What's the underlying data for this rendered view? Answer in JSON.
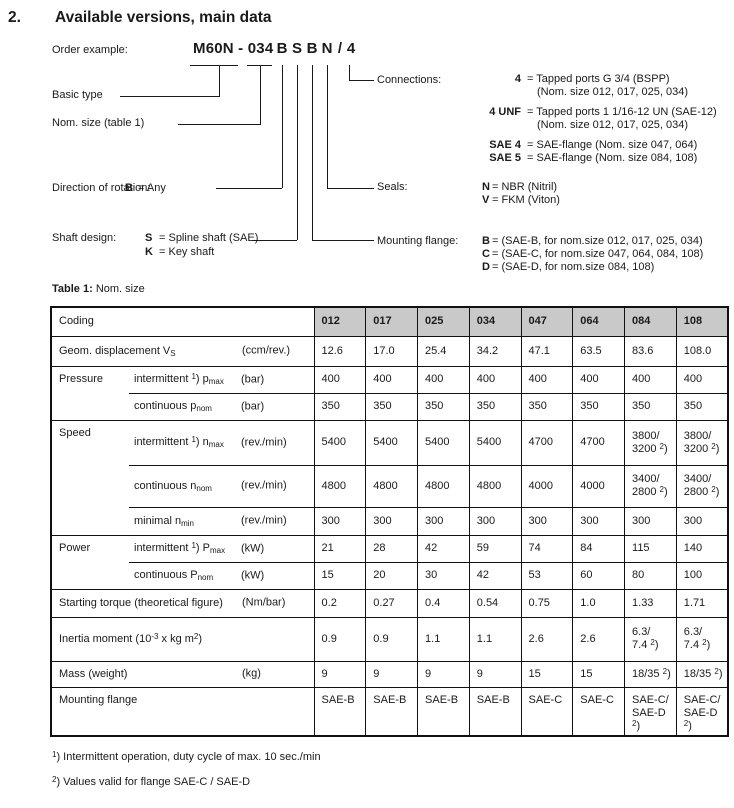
{
  "page": {
    "section_number": "2.",
    "title": "Available versions, main data"
  },
  "diagram": {
    "order_example_label": "Order example:",
    "code_prefix": "M60N - 034",
    "code_letters": [
      "B",
      "S",
      "B",
      "N",
      "/",
      "4"
    ],
    "basic_type_label": "Basic type",
    "nom_size_label": "Nom. size (table 1)",
    "direction": {
      "label": "Direction of rotation:",
      "code": "B",
      "desc": "= Any"
    },
    "shaft": {
      "label": "Shaft design:",
      "options": [
        {
          "code": "S",
          "desc": "= Spline shaft (SAE)"
        },
        {
          "code": "K",
          "desc": "= Key shaft"
        }
      ]
    },
    "connections": {
      "label": "Connections:",
      "options": [
        {
          "code": "4",
          "desc": "= Tapped ports G 3/4 (BSPP)",
          "note": "(Nom. size 012, 017, 025, 034)"
        },
        {
          "code": "4 UNF",
          "desc": "= Tapped ports 1 1/16-12 UN (SAE-12)",
          "note": "(Nom. size 012, 017, 025, 034)"
        },
        {
          "code": "SAE 4",
          "desc": "= SAE-flange (Nom. size 047, 064)",
          "note": ""
        },
        {
          "code": "SAE 5",
          "desc": "= SAE-flange (Nom. size 084, 108)",
          "note": ""
        }
      ]
    },
    "seals": {
      "label": "Seals:",
      "options": [
        {
          "code": "N",
          "desc": "= NBR (Nitril)"
        },
        {
          "code": "V",
          "desc": "= FKM (Viton)"
        }
      ]
    },
    "mounting": {
      "label": "Mounting flange:",
      "options": [
        {
          "code": "B",
          "desc": "= (SAE-B, for nom.size 012, 017, 025, 034)"
        },
        {
          "code": "C",
          "desc": "= (SAE-C, for nom.size 047, 064, 084, 108)"
        },
        {
          "code": "D",
          "desc": "= (SAE-D, for nom.size 084, 108)"
        }
      ]
    }
  },
  "table": {
    "caption_bold": "Table 1:",
    "caption_text": "Nom. size",
    "header_label": "Coding",
    "columns": [
      "012",
      "017",
      "025",
      "034",
      "047",
      "064",
      "084",
      "108"
    ],
    "rows": [
      {
        "label": "Geom. displacement V_{S}",
        "unit": "(ccm/rev.)",
        "values": [
          "12.6",
          "17.0",
          "25.4",
          "34.2",
          "47.1",
          "63.5",
          "83.6",
          "108.0"
        ]
      },
      {
        "group": "Pressure",
        "label": "intermittent ^{1}) p_{max}",
        "unit": "(bar)",
        "values": [
          "400",
          "400",
          "400",
          "400",
          "400",
          "400",
          "400",
          "400"
        ]
      },
      {
        "label": "continuous p_{nom}",
        "unit": "(bar)",
        "values": [
          "350",
          "350",
          "350",
          "350",
          "350",
          "350",
          "350",
          "350"
        ]
      },
      {
        "group": "Speed",
        "label": "intermittent ^{1}) n_{max}",
        "unit": "(rev./min)",
        "values": [
          "5400",
          "5400",
          "5400",
          "5400",
          "4700",
          "4700",
          "3800/\n3200 ^{2})",
          "3800/\n3200 ^{2})"
        ]
      },
      {
        "label": "continuous n_{nom}",
        "unit": "(rev./min)",
        "values": [
          "4800",
          "4800",
          "4800",
          "4800",
          "4000",
          "4000",
          "3400/\n2800 ^{2})",
          "3400/\n2800 ^{2})"
        ]
      },
      {
        "label": "minimal n_{min}",
        "unit": "(rev./min)",
        "values": [
          "300",
          "300",
          "300",
          "300",
          "300",
          "300",
          "300",
          "300"
        ]
      },
      {
        "group": "Power",
        "label": "intermittent ^{1}) P_{max}",
        "unit": "(kW)",
        "values": [
          "21",
          "28",
          "42",
          "59",
          "74",
          "84",
          "115",
          "140"
        ]
      },
      {
        "label": "continuous P_{nom}",
        "unit": "(kW)",
        "values": [
          "15",
          "20",
          "30",
          "42",
          "53",
          "60",
          "80",
          "100"
        ]
      },
      {
        "label": "Starting torque (theoretical figure)",
        "unit": "(Nm/bar)",
        "values": [
          "0.2",
          "0.27",
          "0.4",
          "0.54",
          "0.75",
          "1.0",
          "1.33",
          "1.71"
        ]
      },
      {
        "label": "Inertia moment (10^{-3} x kg m^{2})",
        "unit": "",
        "values": [
          "0.9",
          "0.9",
          "1.1",
          "1.1",
          "2.6",
          "2.6",
          "6.3/\n7.4 ^{2})",
          "6.3/\n7.4 ^{2})"
        ]
      },
      {
        "label": "Mass (weight)",
        "unit": "(kg)",
        "values": [
          "9",
          "9",
          "9",
          "9",
          "15",
          "15",
          "18/35 ^{2})",
          "18/35 ^{2})"
        ]
      },
      {
        "label": "Mounting flange",
        "unit": "",
        "values": [
          "SAE-B",
          "SAE-B",
          "SAE-B",
          "SAE-B",
          "SAE-C",
          "SAE-C",
          "SAE-C/\nSAE-D ^{2})",
          "SAE-C/\nSAE-D ^{2})"
        ]
      }
    ]
  },
  "footnotes": [
    "^{1}) Intermittent operation, duty cycle of max. 10 sec./min",
    "^{2}) Values valid for flange SAE-C / SAE-D"
  ],
  "colors": {
    "text": "#1a1a1a",
    "header_bg": "#c9c9c9",
    "line": "#1a1a1a"
  }
}
